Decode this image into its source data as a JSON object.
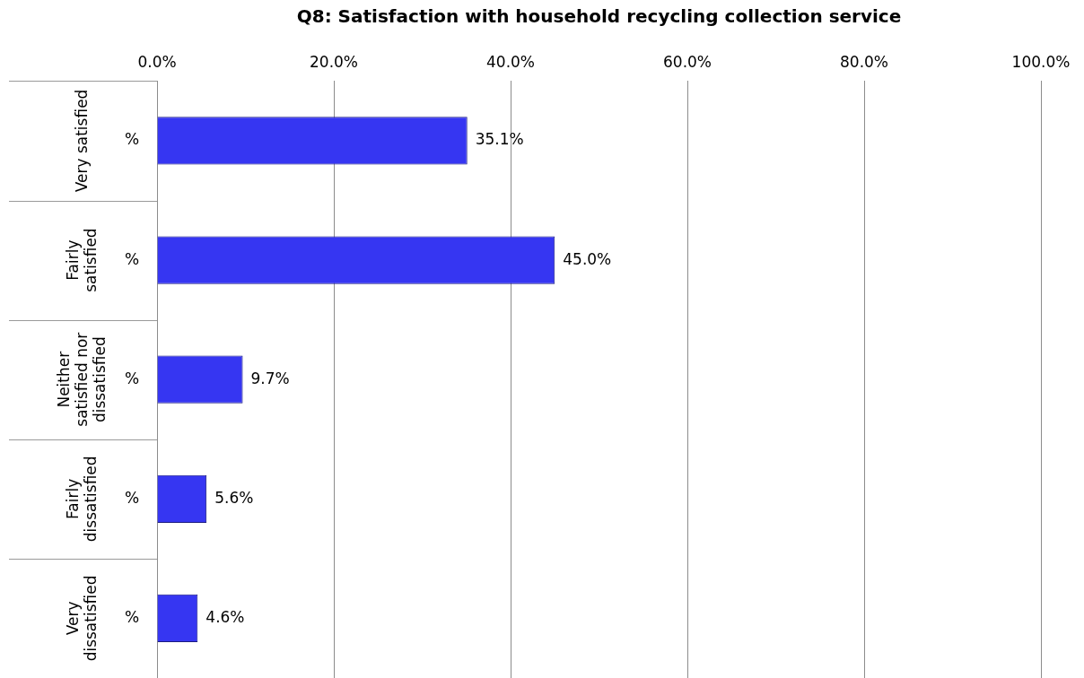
{
  "chart_data": {
    "type": "bar",
    "orientation": "horizontal",
    "title": "Q8: Satisfaction with household recycling collection service",
    "categories": [
      "Very satisfied",
      "Fairly satisfied",
      "Neither satisfied nor dissatisfied",
      "Fairly dissatisfied",
      "Very dissatisfied"
    ],
    "values": [
      35.1,
      45.0,
      9.7,
      5.6,
      4.6
    ],
    "value_labels": [
      "35.1%",
      "45.0%",
      "9.7%",
      "5.6%",
      "4.6%"
    ],
    "color": "#3636f2",
    "xlim": [
      0,
      100
    ],
    "xticks": [
      {
        "value": 0,
        "label": "0.0%"
      },
      {
        "value": 20,
        "label": "20.0%"
      },
      {
        "value": 40,
        "label": "40.0%"
      },
      {
        "value": 60,
        "label": "60.0%"
      },
      {
        "value": 80,
        "label": "80.0%"
      },
      {
        "value": 100,
        "label": "100.0%"
      }
    ],
    "grid": "x",
    "legend": false,
    "annotations": [
      "%",
      "%",
      "%",
      "%",
      "%"
    ]
  }
}
